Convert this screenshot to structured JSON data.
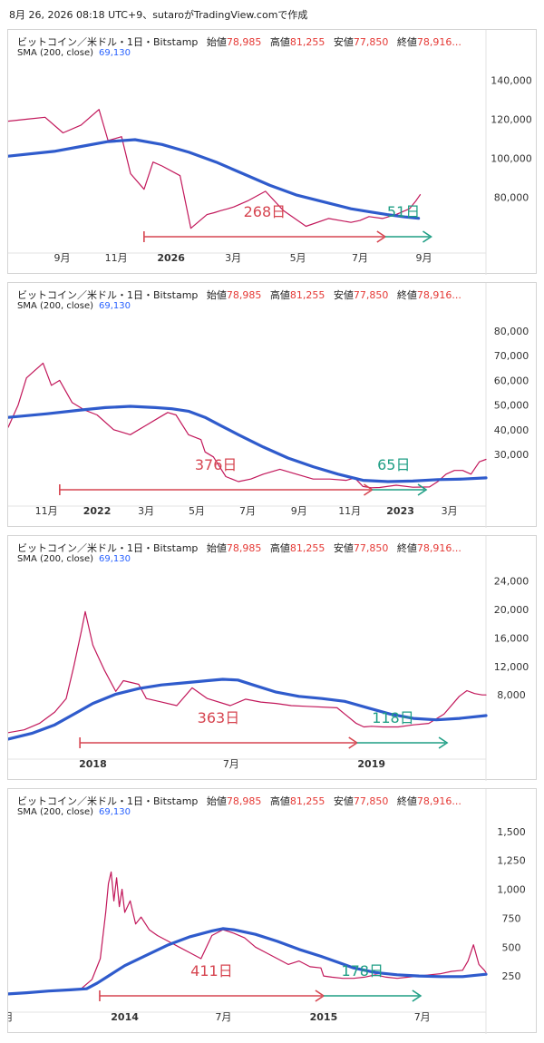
{
  "caption": "8月 26, 2026 08:18 UTC+9、sutaroがTradingView.comで作成",
  "header": {
    "symbol": "ビットコイン／米ドル・1日・Bitstamp",
    "open_label": "始値",
    "open_value": "78,985",
    "high_label": "高値",
    "high_value": "81,255",
    "low_label": "安値",
    "low_value": "77,850",
    "close_label": "終値",
    "close_value": "78,916...",
    "sma_label": "SMA (200, close)",
    "sma_value": "69,130"
  },
  "colors": {
    "price": "#c2185b",
    "sma": "#2f5bcc",
    "red_arrow": "#d64550",
    "green_arrow": "#1e9e84",
    "axis_text": "#333333"
  },
  "chart_data": [
    {
      "type": "line",
      "y_ticks": [
        "140,000",
        "120,000",
        "100,000",
        "80,000"
      ],
      "y_tick_values": [
        140000,
        120000,
        100000,
        80000
      ],
      "ylim": [
        55000,
        150000
      ],
      "x_ticks": [
        "9月",
        "11月",
        "2026",
        "3月",
        "5月",
        "7月",
        "9月"
      ],
      "x_tick_values": [
        9,
        69,
        130,
        199,
        271,
        340,
        411
      ],
      "xlim": [
        -51,
        480
      ],
      "series": [
        {
          "name": "price",
          "x": [
            -51,
            -30,
            -10,
            10,
            30,
            50,
            60,
            75,
            85,
            100,
            110,
            120,
            140,
            152,
            170,
            178,
            185,
            193,
            200,
            215,
            235,
            255,
            280,
            305,
            330,
            340,
            350,
            365,
            380,
            395,
            402,
            405,
            407
          ],
          "values": [
            119000,
            120000,
            121000,
            113000,
            117000,
            125000,
            109000,
            111000,
            92000,
            84000,
            98000,
            96000,
            91000,
            64000,
            71000,
            72000,
            73000,
            74000,
            75000,
            78000,
            83000,
            73000,
            65000,
            69000,
            67000,
            68000,
            70000,
            69000,
            71000,
            74000,
            78000,
            80000,
            81255
          ]
        },
        {
          "name": "SMA (200, close)",
          "x": [
            -51,
            0,
            30,
            60,
            90,
            120,
            150,
            180,
            210,
            240,
            270,
            300,
            330,
            350,
            370,
            390,
            400,
            405
          ],
          "values": [
            101000,
            103500,
            106000,
            108500,
            109500,
            107000,
            103000,
            98000,
            92000,
            86000,
            81000,
            77500,
            74000,
            72500,
            71000,
            69800,
            69400,
            69130
          ]
        }
      ],
      "annotations": [
        {
          "text": "268日",
          "from_x": 100,
          "to_x": 368,
          "kind": "red"
        },
        {
          "text": "51日",
          "from_x": 368,
          "to_x": 419,
          "kind": "green"
        }
      ]
    },
    {
      "type": "line",
      "y_ticks": [
        "80,000",
        "70,000",
        "60,000",
        "50,000",
        "40,000",
        "30,000"
      ],
      "y_tick_values": [
        80000,
        70000,
        60000,
        50000,
        40000,
        30000
      ],
      "ylim": [
        12000,
        87000
      ],
      "x_ticks": [
        "11月",
        "2022",
        "3月",
        "5月",
        "7月",
        "9月",
        "11月",
        "2023",
        "3月"
      ],
      "x_tick_values": [
        -61,
        0,
        59,
        120,
        181,
        243,
        304,
        365,
        424
      ],
      "xlim": [
        -107,
        468
      ],
      "series": [
        {
          "name": "price",
          "x": [
            -107,
            -95,
            -85,
            -75,
            -65,
            -55,
            -45,
            -30,
            -15,
            0,
            20,
            40,
            60,
            75,
            85,
            95,
            110,
            125,
            130,
            140,
            155,
            170,
            185,
            200,
            220,
            240,
            260,
            280,
            300,
            310,
            320,
            330,
            340,
            360,
            380,
            400,
            410,
            420,
            430,
            440,
            450,
            460,
            468
          ],
          "values": [
            41000,
            50000,
            61000,
            64000,
            67000,
            58000,
            60000,
            51000,
            48000,
            46000,
            40000,
            38000,
            42000,
            45000,
            47000,
            46000,
            38000,
            36000,
            31000,
            29000,
            21000,
            19000,
            20000,
            22000,
            24000,
            22000,
            20000,
            20000,
            19500,
            20500,
            17000,
            16500,
            16600,
            17500,
            16700,
            16800,
            19000,
            22000,
            23500,
            23500,
            22000,
            27000,
            28000
          ]
        },
        {
          "name": "SMA (200, close)",
          "x": [
            -107,
            -60,
            -20,
            10,
            40,
            70,
            90,
            110,
            130,
            150,
            170,
            200,
            230,
            260,
            290,
            320,
            350,
            380,
            410,
            440,
            468
          ],
          "values": [
            45000,
            46500,
            48000,
            49000,
            49500,
            49000,
            48500,
            47500,
            45000,
            41500,
            38000,
            33000,
            28500,
            25000,
            22000,
            19500,
            19000,
            19200,
            19800,
            20000,
            20500
          ]
        }
      ],
      "annotations": [
        {
          "text": "376日",
          "from_x": -45,
          "to_x": 331,
          "kind": "red"
        },
        {
          "text": "65日",
          "from_x": 331,
          "to_x": 396,
          "kind": "green"
        }
      ]
    },
    {
      "type": "line",
      "y_ticks": [
        "24,000",
        "20,000",
        "16,000",
        "12,000",
        "8,000"
      ],
      "y_tick_values": [
        24000,
        20000,
        16000,
        12000,
        8000
      ],
      "ylim": [
        0,
        26000
      ],
      "x_ticks": [
        "2018",
        "7月",
        "2019"
      ],
      "x_tick_values": [
        0,
        181,
        365
      ],
      "xlim": [
        -111,
        515
      ],
      "series": [
        {
          "name": "price",
          "x": [
            -111,
            -90,
            -70,
            -50,
            -35,
            -25,
            -15,
            -10,
            0,
            5,
            15,
            30,
            40,
            60,
            70,
            90,
            110,
            130,
            150,
            180,
            200,
            220,
            240,
            260,
            280,
            320,
            345,
            355,
            365,
            380,
            400,
            420,
            440,
            460,
            480,
            490,
            500,
            510,
            515
          ],
          "values": [
            2700,
            3100,
            4000,
            5600,
            7500,
            12000,
            17000,
            19700,
            15000,
            13800,
            11500,
            8500,
            10000,
            9500,
            7500,
            7000,
            6500,
            9000,
            7500,
            6500,
            7400,
            7000,
            6800,
            6500,
            6400,
            6200,
            4000,
            3500,
            3600,
            3500,
            3500,
            3800,
            4000,
            5300,
            7800,
            8600,
            8200,
            8000,
            8000
          ]
        },
        {
          "name": "SMA (200, close)",
          "x": [
            -111,
            -80,
            -50,
            -20,
            0,
            30,
            60,
            90,
            120,
            150,
            170,
            190,
            210,
            240,
            270,
            300,
            330,
            360,
            390,
            420,
            450,
            480,
            515
          ],
          "values": [
            1800,
            2600,
            3800,
            5600,
            6800,
            8100,
            8900,
            9400,
            9700,
            10000,
            10200,
            10100,
            9400,
            8400,
            7800,
            7500,
            7100,
            6200,
            5300,
            4700,
            4500,
            4700,
            5100
          ]
        }
      ],
      "annotations": [
        {
          "text": "363日",
          "from_x": -17,
          "to_x": 346,
          "kind": "red"
        },
        {
          "text": "118日",
          "from_x": 346,
          "to_x": 464,
          "kind": "green"
        }
      ]
    },
    {
      "type": "line",
      "y_ticks": [
        "1,500",
        "1,250",
        "1,000",
        "750",
        "500",
        "250"
      ],
      "y_tick_values": [
        1500,
        1250,
        1000,
        750,
        500,
        250
      ],
      "ylim": [
        0,
        1600
      ],
      "x_ticks": [
        "月",
        "2014",
        "7月",
        "2015",
        "7月"
      ],
      "x_tick_values": [
        -214,
        0,
        181,
        365,
        546
      ],
      "xlim": [
        -214,
        663
      ],
      "series": [
        {
          "name": "price",
          "x": [
            -214,
            -180,
            -140,
            -100,
            -80,
            -60,
            -45,
            -35,
            -30,
            -25,
            -20,
            -15,
            -10,
            -5,
            0,
            10,
            20,
            30,
            45,
            60,
            80,
            100,
            120,
            140,
            160,
            180,
            200,
            220,
            240,
            260,
            280,
            300,
            320,
            340,
            360,
            365,
            380,
            400,
            420,
            440,
            460,
            480,
            500,
            520,
            540,
            560,
            580,
            600,
            620,
            630,
            635,
            640,
            650,
            660,
            663
          ],
          "values": [
            100,
            110,
            120,
            125,
            140,
            220,
            400,
            800,
            1050,
            1150,
            900,
            1100,
            850,
            1000,
            800,
            900,
            700,
            760,
            650,
            600,
            550,
            500,
            450,
            400,
            600,
            650,
            620,
            580,
            500,
            450,
            400,
            350,
            380,
            330,
            320,
            250,
            240,
            230,
            230,
            240,
            260,
            240,
            230,
            240,
            250,
            260,
            270,
            290,
            300,
            380,
            450,
            520,
            350,
            300,
            280
          ]
        },
        {
          "name": "SMA (200, close)",
          "x": [
            -214,
            -180,
            -140,
            -100,
            -70,
            -50,
            -30,
            0,
            40,
            80,
            120,
            160,
            180,
            200,
            240,
            280,
            320,
            360,
            390,
            420,
            460,
            500,
            540,
            580,
            620,
            663
          ],
          "values": [
            95,
            105,
            120,
            130,
            140,
            190,
            250,
            340,
            430,
            520,
            590,
            640,
            660,
            650,
            610,
            550,
            480,
            420,
            370,
            320,
            280,
            260,
            250,
            245,
            245,
            265
          ]
        }
      ],
      "annotations": [
        {
          "text": "411日",
          "from_x": -46,
          "to_x": 365,
          "kind": "red"
        },
        {
          "text": "178日",
          "from_x": 365,
          "to_x": 543,
          "kind": "green"
        }
      ]
    }
  ]
}
